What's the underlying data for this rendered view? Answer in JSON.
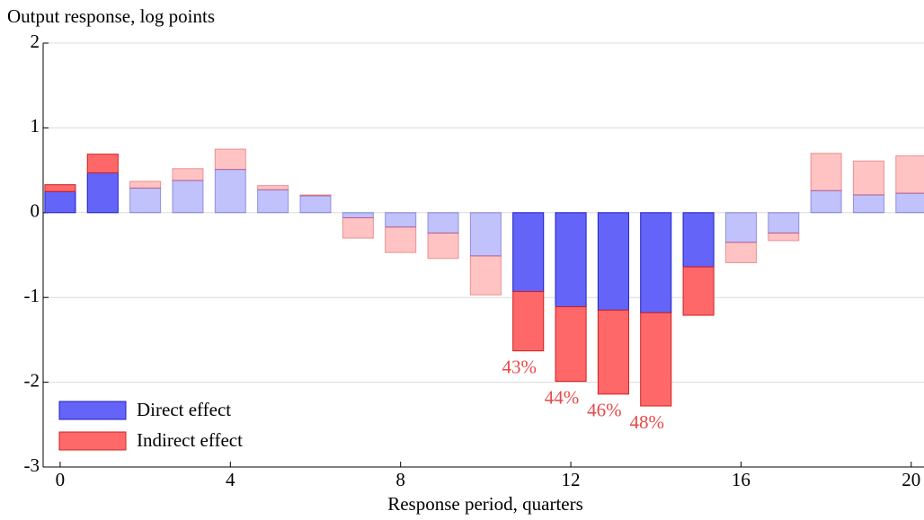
{
  "chart_data": {
    "type": "stacked_bar",
    "y_label": "Output response, log points",
    "x_label": "Response period, quarters",
    "x": [
      0,
      1,
      2,
      3,
      4,
      5,
      6,
      7,
      8,
      9,
      10,
      11,
      12,
      13,
      14,
      15,
      16,
      17,
      18,
      19,
      20
    ],
    "emphasis": [
      true,
      true,
      false,
      false,
      false,
      false,
      false,
      false,
      false,
      false,
      false,
      true,
      true,
      true,
      true,
      true,
      false,
      false,
      false,
      false,
      false
    ],
    "series": [
      {
        "name": "Direct effect",
        "color": "#6464f8",
        "edge": "#2020c0",
        "values": [
          0.25,
          0.47,
          0.29,
          0.38,
          0.51,
          0.27,
          0.2,
          -0.06,
          -0.17,
          -0.24,
          -0.51,
          -0.93,
          -1.11,
          -1.15,
          -1.18,
          -0.64,
          -0.35,
          -0.24,
          0.26,
          0.21,
          0.23
        ]
      },
      {
        "name": "Indirect effect",
        "color": "#ff6868",
        "edge": "#d02020",
        "values": [
          0.08,
          0.22,
          0.08,
          0.14,
          0.24,
          0.05,
          0.01,
          -0.24,
          -0.3,
          -0.3,
          -0.46,
          -0.7,
          -0.88,
          -0.99,
          -1.1,
          -0.57,
          -0.24,
          -0.09,
          0.44,
          0.4,
          0.44
        ]
      }
    ],
    "annotations": [
      {
        "x": 11,
        "text": "43%"
      },
      {
        "x": 12,
        "text": "44%"
      },
      {
        "x": 13,
        "text": "46%"
      },
      {
        "x": 14,
        "text": "48%"
      }
    ],
    "annotation_color": "#e84848",
    "xlim": [
      -0.4,
      20.3
    ],
    "xticks": [
      0,
      4,
      8,
      12,
      16,
      20
    ],
    "ylim": [
      -3,
      2
    ],
    "yticks": [
      -3,
      -2,
      -1,
      0,
      1,
      2
    ],
    "grid": true,
    "legend": "lower left"
  }
}
